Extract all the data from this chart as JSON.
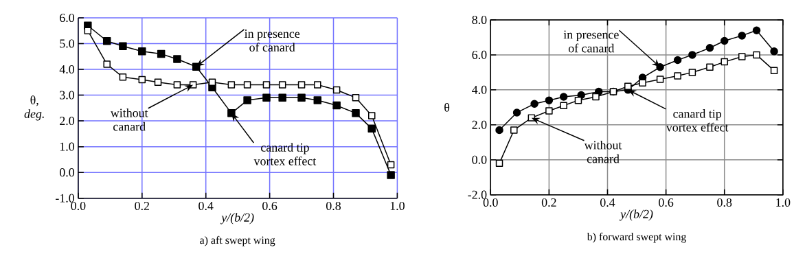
{
  "chart_data": [
    {
      "type": "line",
      "title": "a) aft swept wing",
      "xlabel": "y/(b/2)",
      "ylabel": "θ, *deg.*",
      "xlim": [
        0,
        1.0
      ],
      "ylim": [
        -1.0,
        6.0
      ],
      "xticks": [
        {
          "value": 0,
          "label": "0.0"
        },
        {
          "value": 0.2,
          "label": "0.2"
        },
        {
          "value": 0.4,
          "label": "0.4"
        },
        {
          "value": 0.6,
          "label": "0.6"
        },
        {
          "value": 0.8,
          "label": "0.8"
        },
        {
          "value": 1.0,
          "label": "1.0"
        }
      ],
      "yticks": [
        {
          "value": -1,
          "label": "-1.0"
        },
        {
          "value": 0,
          "label": "0.0"
        },
        {
          "value": 1,
          "label": "1.0"
        },
        {
          "value": 2,
          "label": "2.0"
        },
        {
          "value": 3,
          "label": "3.0"
        },
        {
          "value": 4,
          "label": "4.0"
        },
        {
          "value": 5,
          "label": "5.0"
        },
        {
          "value": 6,
          "label": "6.0"
        }
      ],
      "grid": true,
      "line_style": "solid",
      "series": [
        {
          "color": "#000000",
          "marker": "square",
          "x": [
            0.03,
            0.09,
            0.14,
            0.2,
            0.26,
            0.31,
            0.37,
            0.42,
            0.48,
            0.53,
            0.59,
            0.64,
            0.7,
            0.75,
            0.81,
            0.87,
            0.92,
            0.98
          ],
          "values": [
            5.7,
            5.1,
            4.9,
            4.7,
            4.6,
            4.4,
            4.1,
            3.3,
            2.3,
            2.8,
            2.9,
            2.9,
            2.9,
            2.8,
            2.6,
            2.3,
            1.7,
            -0.1
          ]
        },
        {
          "color": "#000000",
          "marker": "square",
          "x": [
            0.03,
            0.09,
            0.14,
            0.2,
            0.25,
            0.31,
            0.36,
            0.42,
            0.48,
            0.53,
            0.59,
            0.64,
            0.7,
            0.75,
            0.81,
            0.87,
            0.92,
            0.98
          ],
          "values": [
            5.5,
            4.2,
            3.7,
            3.6,
            3.5,
            3.4,
            3.4,
            3.5,
            3.4,
            3.4,
            3.4,
            3.4,
            3.4,
            3.4,
            3.2,
            2.9,
            2.2,
            0.3
          ]
        }
      ],
      "annotations": [
        {
          "text": "in presence of canard",
          "x": 0.37,
          "y": 4.1
        },
        {
          "text": "without canard",
          "x": 0.36,
          "y": 3.4
        },
        {
          "text": "canard tip vortex effect",
          "x": 0.48,
          "y": 2.3
        }
      ]
    },
    {
      "type": "line",
      "title": "b) forward swept wing",
      "xlabel": "y/(b/2)",
      "ylabel": "θ",
      "xlim": [
        0,
        1.0
      ],
      "ylim": [
        -2.0,
        8.0
      ],
      "xticks": [
        {
          "value": 0,
          "label": "0.0"
        },
        {
          "value": 0.2,
          "label": "0.2"
        },
        {
          "value": 0.4,
          "label": "0.4"
        },
        {
          "value": 0.6,
          "label": "0.6"
        },
        {
          "value": 0.8,
          "label": "0.8"
        },
        {
          "value": 1.0,
          "label": "1.0"
        }
      ],
      "yticks": [
        {
          "value": -2,
          "label": "-2.0"
        },
        {
          "value": 0,
          "label": "0.0"
        },
        {
          "value": 2,
          "label": "2.0"
        },
        {
          "value": 4,
          "label": "4.0"
        },
        {
          "value": 6,
          "label": "6.0"
        },
        {
          "value": 8,
          "label": "8.0"
        }
      ],
      "grid": true,
      "line_style": "solid",
      "series": [
        {
          "color": "#000000",
          "marker": "circle",
          "x": [
            0.03,
            0.09,
            0.15,
            0.2,
            0.25,
            0.31,
            0.37,
            0.42,
            0.47,
            0.52,
            0.58,
            0.64,
            0.69,
            0.75,
            0.8,
            0.86,
            0.91,
            0.97
          ],
          "values": [
            1.7,
            2.7,
            3.2,
            3.4,
            3.6,
            3.7,
            3.9,
            3.9,
            4.0,
            4.7,
            5.3,
            5.7,
            6.0,
            6.4,
            6.8,
            7.1,
            7.4,
            6.2
          ]
        },
        {
          "color": "#000000",
          "marker": "square",
          "x": [
            0.03,
            0.08,
            0.14,
            0.2,
            0.25,
            0.3,
            0.36,
            0.42,
            0.47,
            0.52,
            0.58,
            0.64,
            0.69,
            0.75,
            0.8,
            0.86,
            0.91,
            0.97
          ],
          "values": [
            -0.2,
            1.7,
            2.4,
            2.8,
            3.1,
            3.4,
            3.6,
            3.9,
            4.2,
            4.4,
            4.6,
            4.8,
            5.0,
            5.3,
            5.6,
            5.9,
            6.0,
            5.1
          ]
        }
      ],
      "annotations": [
        {
          "text": "in presence of canard",
          "x": 0.58,
          "y": 5.3
        },
        {
          "text": "canard tip vortex effect",
          "x": 0.47,
          "y": 4.0
        },
        {
          "text": "without canard",
          "x": 0.14,
          "y": 2.4
        }
      ]
    }
  ]
}
